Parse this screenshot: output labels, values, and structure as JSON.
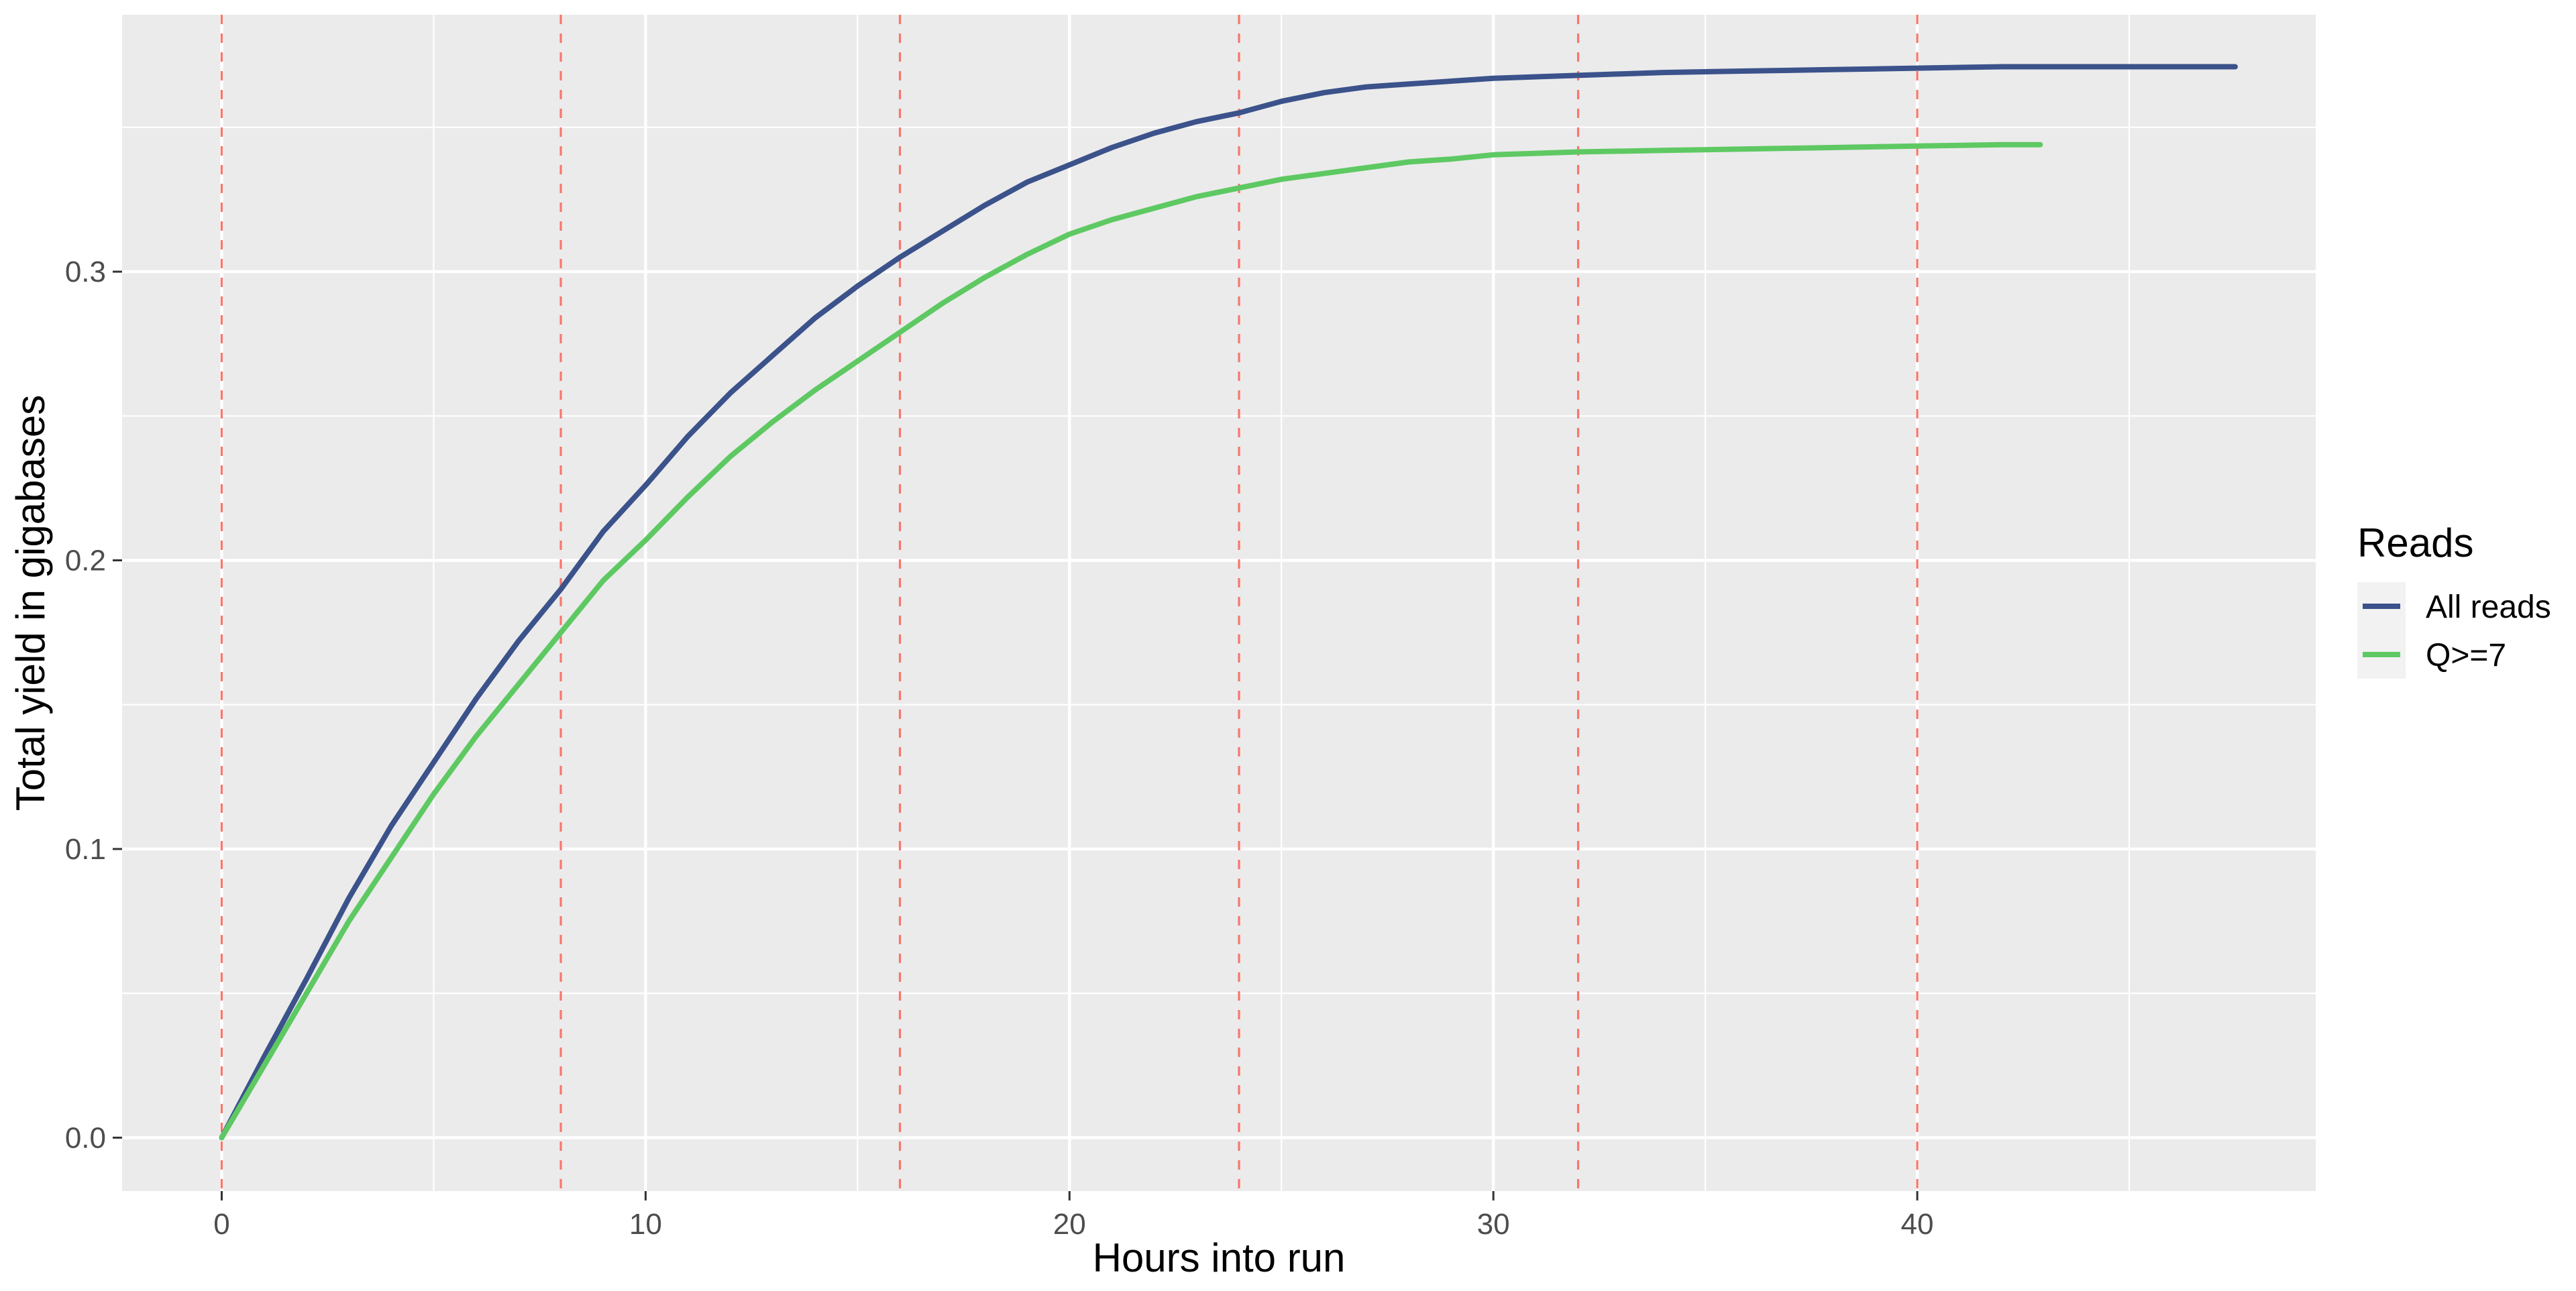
{
  "chart_data": {
    "type": "line",
    "title": "",
    "xlabel": "Hours into run",
    "ylabel": "Total yield in gigabases",
    "xlim": [
      -2.35,
      49.4
    ],
    "ylim": [
      -0.0185,
      0.389
    ],
    "x_ticks": [
      0,
      10,
      20,
      30,
      40
    ],
    "x_tick_labels": [
      "0",
      "10",
      "20",
      "30",
      "40"
    ],
    "x_minor_ticks": [
      5,
      15,
      25,
      35,
      45
    ],
    "y_ticks": [
      0.0,
      0.1,
      0.2,
      0.3
    ],
    "y_tick_labels": [
      "0.0",
      "0.1",
      "0.2",
      "0.3"
    ],
    "y_minor_ticks": [
      0.05,
      0.15,
      0.25,
      0.35
    ],
    "grid": true,
    "panel_background": "#EBEBEB",
    "grid_color": "#FFFFFF",
    "vlines": {
      "x": [
        0,
        8,
        16,
        24,
        32,
        40
      ],
      "color": "#F8766D",
      "style": "dashed"
    },
    "legend": {
      "title": "Reads",
      "position": "right"
    },
    "series": [
      {
        "name": "All reads",
        "color": "#3B528B",
        "x": [
          0,
          1,
          2,
          3,
          4,
          5,
          6,
          7,
          8,
          9,
          10,
          11,
          12,
          13,
          14,
          15,
          16,
          17,
          18,
          19,
          20,
          21,
          22,
          23,
          24,
          25,
          26,
          27,
          28,
          29,
          30,
          32,
          34,
          36,
          38,
          40,
          42,
          44,
          46,
          47.5
        ],
        "y": [
          0.0,
          0.028,
          0.055,
          0.083,
          0.108,
          0.13,
          0.152,
          0.172,
          0.19,
          0.21,
          0.226,
          0.243,
          0.258,
          0.271,
          0.284,
          0.295,
          0.305,
          0.314,
          0.323,
          0.331,
          0.337,
          0.343,
          0.348,
          0.352,
          0.355,
          0.359,
          0.362,
          0.364,
          0.365,
          0.366,
          0.367,
          0.368,
          0.369,
          0.3695,
          0.37,
          0.3705,
          0.371,
          0.371,
          0.371,
          0.371
        ]
      },
      {
        "name": "Q>=7",
        "color": "#5EC962",
        "x": [
          0,
          1,
          2,
          3,
          4,
          5,
          6,
          7,
          8,
          9,
          10,
          11,
          12,
          13,
          14,
          15,
          16,
          17,
          18,
          19,
          20,
          21,
          22,
          23,
          24,
          25,
          26,
          27,
          28,
          29,
          30,
          32,
          34,
          36,
          38,
          40,
          42,
          42.9
        ],
        "y": [
          0.0,
          0.025,
          0.05,
          0.075,
          0.097,
          0.119,
          0.139,
          0.157,
          0.175,
          0.193,
          0.207,
          0.222,
          0.236,
          0.248,
          0.259,
          0.269,
          0.279,
          0.289,
          0.298,
          0.306,
          0.313,
          0.318,
          0.322,
          0.326,
          0.329,
          0.332,
          0.334,
          0.336,
          0.338,
          0.339,
          0.3405,
          0.3415,
          0.342,
          0.3425,
          0.343,
          0.3435,
          0.344,
          0.344
        ]
      }
    ]
  }
}
